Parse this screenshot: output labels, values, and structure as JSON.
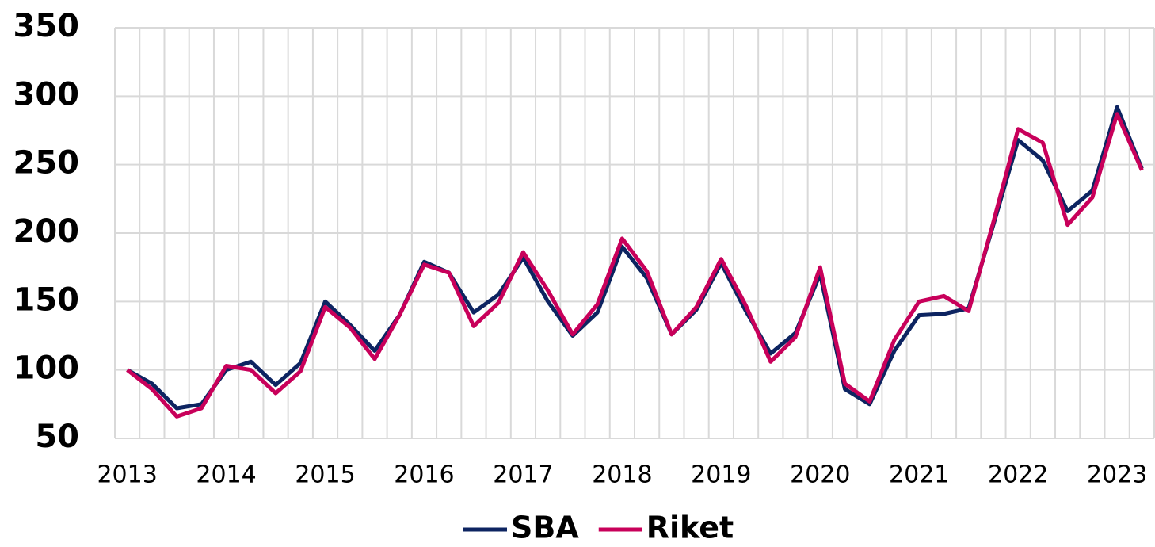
{
  "chart_data": {
    "type": "line",
    "categories": [
      "2013",
      null,
      null,
      null,
      "2014",
      null,
      null,
      null,
      "2015",
      null,
      null,
      null,
      "2016",
      null,
      null,
      null,
      "2017",
      null,
      null,
      null,
      "2018",
      null,
      null,
      null,
      "2019",
      null,
      null,
      null,
      "2020",
      null,
      null,
      null,
      "2021",
      null,
      null,
      null,
      "2022",
      null,
      null,
      null,
      "2023",
      null
    ],
    "series": [
      {
        "name": "SBA",
        "color": "#0d2461",
        "values": [
          100,
          90,
          72,
          75,
          100,
          106,
          89,
          105,
          150,
          133,
          114,
          140,
          179,
          171,
          142,
          155,
          182,
          150,
          125,
          142,
          190,
          167,
          126,
          144,
          178,
          143,
          112,
          127,
          170,
          86,
          75,
          114,
          140,
          141,
          145,
          206,
          268,
          253,
          216,
          231,
          292,
          247
        ]
      },
      {
        "name": "Riket",
        "color": "#c8005a",
        "values": [
          100,
          86,
          66,
          72,
          103,
          100,
          83,
          99,
          146,
          131,
          108,
          140,
          177,
          171,
          132,
          149,
          186,
          158,
          126,
          148,
          196,
          172,
          126,
          146,
          181,
          147,
          106,
          124,
          175,
          90,
          77,
          122,
          150,
          154,
          143,
          208,
          276,
          266,
          206,
          226,
          287,
          246
        ]
      }
    ],
    "ylim": [
      50,
      350
    ],
    "yticks": [
      50,
      100,
      150,
      200,
      250,
      300,
      350
    ],
    "grid": true,
    "legend": "bottom"
  }
}
